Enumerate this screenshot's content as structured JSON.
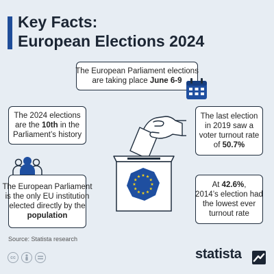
{
  "header": {
    "title_line1": "Key Facts:",
    "title_line2": "European Elections 2024"
  },
  "facts": {
    "dates": {
      "line1": "The European Parliament elections",
      "line2_prefix": "are taking place ",
      "line2_bold": "June 6-9"
    },
    "tenth": {
      "line1": "The 2024 elections",
      "line2_prefix": "are the ",
      "line2_bold": "10th",
      "line2_suffix": " in the",
      "line3": "Parliament’s history"
    },
    "turnout_2019": {
      "line1": "The last election",
      "line2": "in 2019 saw a",
      "line3": "voter turnout rate",
      "line4_prefix": "of ",
      "line4_bold": "50.7%"
    },
    "direct_election": {
      "line1": "The European Parliament",
      "line2": "is the only EU institution",
      "line3": "elected directly by the",
      "line4_bold": "population"
    },
    "lowest_turnout": {
      "line1_prefix": "At ",
      "line1_bold": "42.6%",
      "line1_suffix": ",",
      "line2": "2014’s election had",
      "line3": "the lowest ever",
      "line4": "turnout rate"
    }
  },
  "footer": {
    "source": "Source: Statista research",
    "brand": "statista"
  },
  "colors": {
    "background": "#e7edf3",
    "accent": "#1f4d99",
    "eu_blue": "#1f4fa0",
    "eu_gold": "#f6d31a",
    "outline": "#1f2d3d"
  },
  "icons": [
    "calendar-icon",
    "ballot-box-icon",
    "hand-icon",
    "people-icon",
    "eu-flag-icon",
    "statista-logo-icon",
    "cc-icon",
    "attribution-icon",
    "no-derivatives-icon"
  ]
}
